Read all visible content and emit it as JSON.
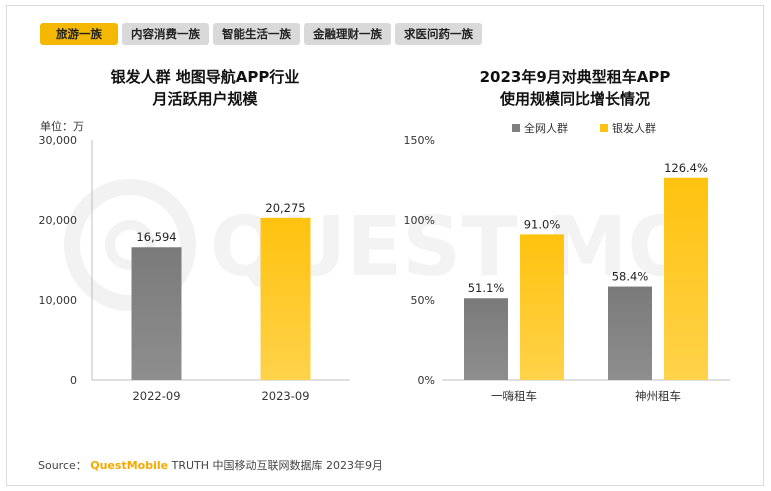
{
  "tabs": [
    {
      "label": "旅游一族",
      "active": true
    },
    {
      "label": "内容消费一族",
      "active": false
    },
    {
      "label": "智能生活一族",
      "active": false
    },
    {
      "label": "金融理财一族",
      "active": false
    },
    {
      "label": "求医问药一族",
      "active": false
    }
  ],
  "left_panel": {
    "title_line1": "银发人群 地图导航APP行业",
    "title_line2": "月活跃用户规模"
  },
  "right_panel": {
    "title_line1": "2023年9月对典型租车APP",
    "title_line2": "使用规模同比增长情况"
  },
  "watermark": "QUEST MOBILE",
  "source": {
    "prefix": "Source：",
    "brand": "QuestMobile",
    "rest": "TRUTH 中国移动互联网数据库 2023年9月"
  },
  "colors": {
    "gray": "#808080",
    "gold": "#ffc20e"
  },
  "chart_data": [
    {
      "type": "bar",
      "unit_label": "单位：万",
      "categories": [
        "2022-09",
        "2023-09"
      ],
      "values": [
        16594,
        20275
      ],
      "value_labels": [
        "16,594",
        "20,275"
      ],
      "bar_colors": [
        "#808080",
        "#ffc20e"
      ],
      "ylim": [
        0,
        30000
      ],
      "yticks": [
        0,
        10000,
        20000,
        30000
      ],
      "ytick_labels": [
        "0",
        "10,000",
        "20,000",
        "30,000"
      ]
    },
    {
      "type": "bar",
      "categories": [
        "一嗨租车",
        "神州租车"
      ],
      "series": [
        {
          "name": "全网人群",
          "values": [
            51.1,
            58.4
          ],
          "labels": [
            "51.1%",
            "58.4%"
          ],
          "color": "#808080"
        },
        {
          "name": "银发人群",
          "values": [
            91.0,
            126.4
          ],
          "labels": [
            "91.0%",
            "126.4%"
          ],
          "color": "#ffc20e"
        }
      ],
      "ylim": [
        0,
        150
      ],
      "yticks": [
        0,
        50,
        100,
        150
      ],
      "ytick_labels": [
        "0%",
        "50%",
        "100%",
        "150%"
      ],
      "legend_position": "top"
    }
  ]
}
